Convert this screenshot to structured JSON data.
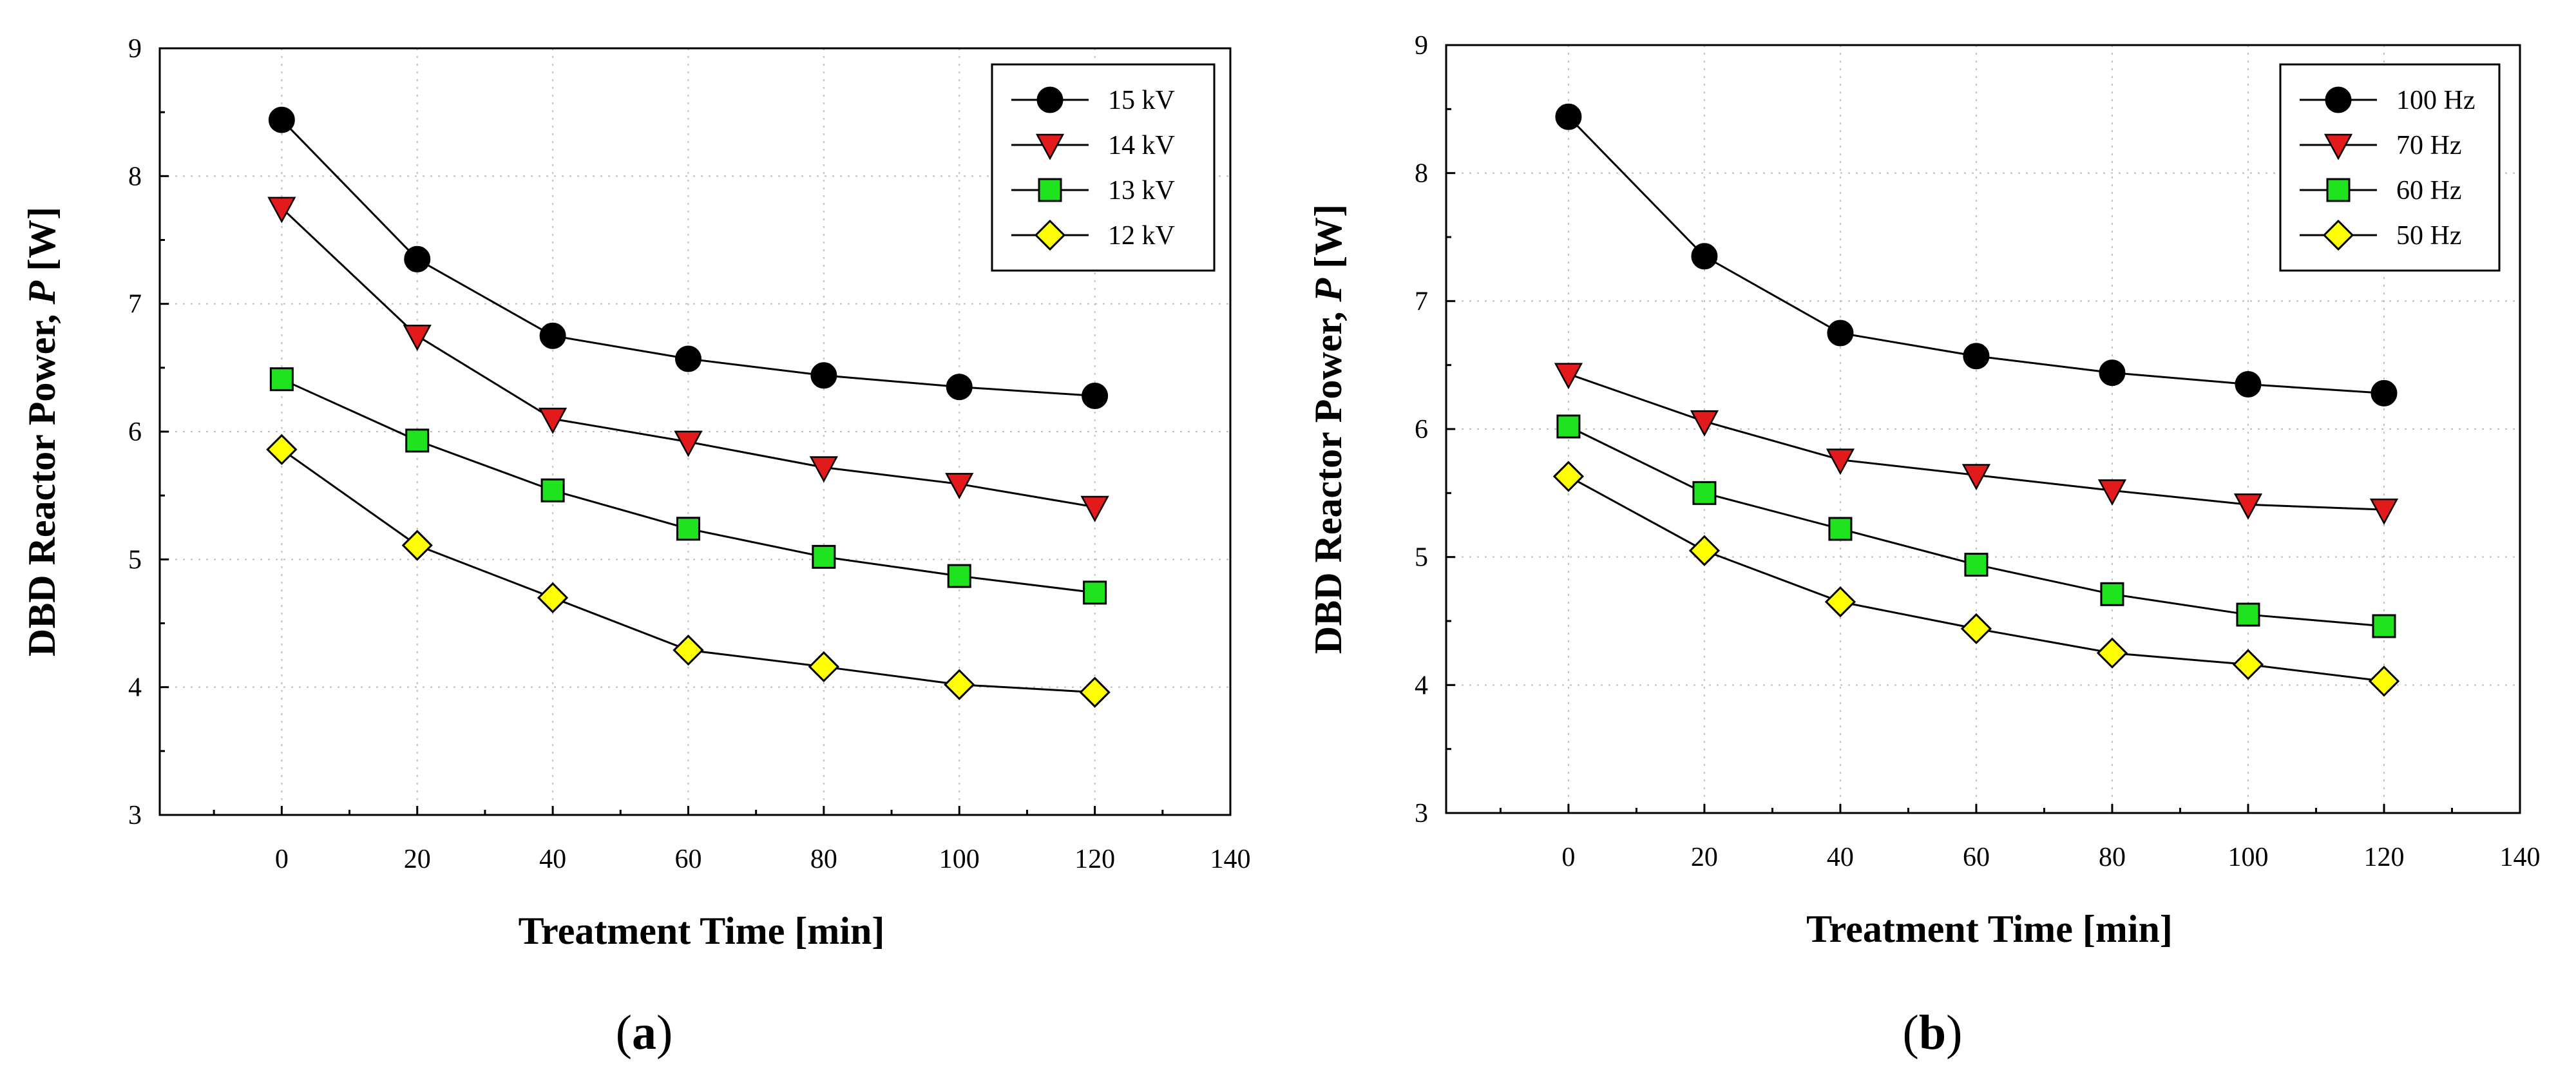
{
  "chart_data": [
    {
      "type": "line",
      "panel_label": "a",
      "xlabel": "Treatment Time [min]",
      "ylabel_main": "DBD Reactor Power, ",
      "ylabel_symbol": "P",
      "ylabel_unit": " [W]",
      "xlim": [
        -18,
        140
      ],
      "ylim": [
        3,
        9
      ],
      "xticks": [
        0,
        20,
        40,
        60,
        80,
        100,
        120,
        140
      ],
      "yticks": [
        3,
        4,
        5,
        6,
        7,
        8,
        9
      ],
      "grid": true,
      "legend_position": "top-right",
      "x": [
        0,
        20,
        40,
        60,
        80,
        100,
        120
      ],
      "series": [
        {
          "name": "15 kV",
          "marker": "circle",
          "color": "#000000",
          "values": [
            8.44,
            7.35,
            6.75,
            6.57,
            6.44,
            6.35,
            6.28
          ]
        },
        {
          "name": "14 kV",
          "marker": "triangle-down",
          "color": "#e31a1c",
          "values": [
            7.75,
            6.75,
            6.1,
            5.92,
            5.72,
            5.59,
            5.41
          ]
        },
        {
          "name": "13 kV",
          "marker": "square",
          "color": "#1fe31f",
          "values": [
            6.41,
            5.93,
            5.54,
            5.24,
            5.02,
            4.87,
            4.74
          ]
        },
        {
          "name": "12 kV",
          "marker": "diamond",
          "color": "#ffff00",
          "values": [
            5.86,
            5.11,
            4.7,
            4.29,
            4.16,
            4.02,
            3.96
          ]
        }
      ]
    },
    {
      "type": "line",
      "panel_label": "b",
      "xlabel": "Treatment Time [min]",
      "ylabel_main": "DBD Reactor Power, ",
      "ylabel_symbol": "P",
      "ylabel_unit": " [W]",
      "xlim": [
        -18,
        140
      ],
      "ylim": [
        3,
        9
      ],
      "xticks": [
        0,
        20,
        40,
        60,
        80,
        100,
        120,
        140
      ],
      "yticks": [
        3,
        4,
        5,
        6,
        7,
        8,
        9
      ],
      "grid": true,
      "legend_position": "top-right",
      "x": [
        0,
        20,
        40,
        60,
        80,
        100,
        120
      ],
      "series": [
        {
          "name": "100 Hz",
          "marker": "circle",
          "color": "#000000",
          "values": [
            8.44,
            7.35,
            6.75,
            6.57,
            6.44,
            6.35,
            6.28
          ]
        },
        {
          "name": "70 Hz",
          "marker": "triangle-down",
          "color": "#e31a1c",
          "values": [
            6.43,
            6.06,
            5.76,
            5.64,
            5.52,
            5.41,
            5.37
          ]
        },
        {
          "name": "60 Hz",
          "marker": "square",
          "color": "#1fe31f",
          "values": [
            6.02,
            5.5,
            5.22,
            4.94,
            4.71,
            4.55,
            4.46
          ]
        },
        {
          "name": "50 Hz",
          "marker": "diamond",
          "color": "#ffff00",
          "values": [
            5.63,
            5.05,
            4.65,
            4.44,
            4.25,
            4.16,
            4.03
          ]
        }
      ]
    }
  ]
}
